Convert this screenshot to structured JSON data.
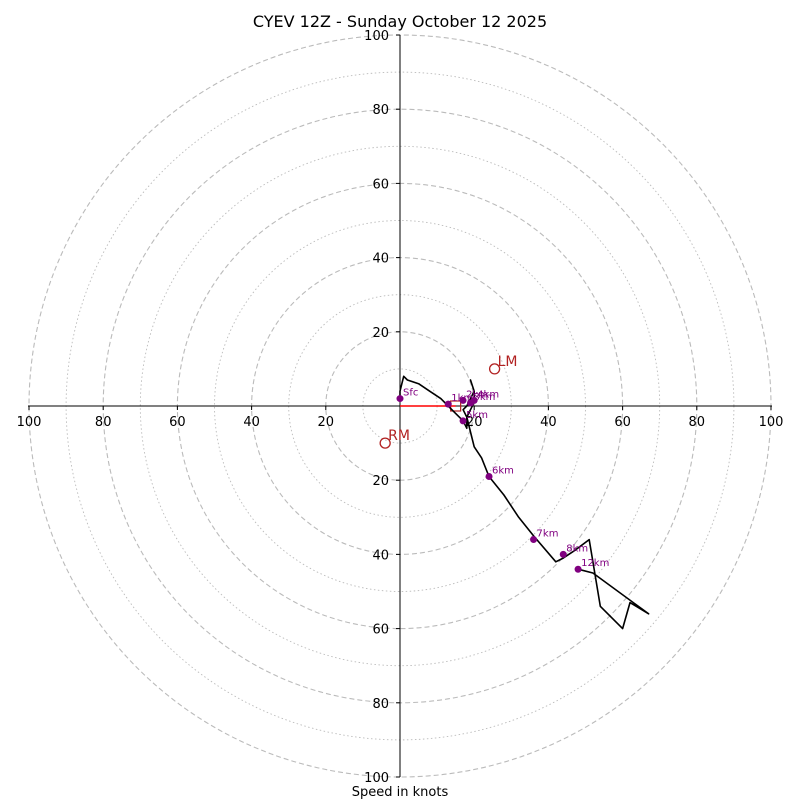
{
  "chart_data": {
    "type": "hodograph",
    "title": "CYEV 12Z - Sunday October 12 2025",
    "xlabel": "Speed in knots",
    "max_speed": 100,
    "ring_major_step": 20,
    "ring_minor_step": 10,
    "tick_values": [
      20,
      40,
      60,
      80,
      100
    ],
    "x_tick_labels": [
      "100",
      "80",
      "60",
      "40",
      "20",
      "20",
      "40",
      "60",
      "80",
      "100"
    ],
    "y_tick_labels_up": [
      "20",
      "40",
      "60",
      "80",
      "100"
    ],
    "y_tick_labels_down": [
      "20",
      "40",
      "60",
      "80",
      "100"
    ],
    "trace": [
      [
        0,
        2
      ],
      [
        0,
        4
      ],
      [
        1,
        8
      ],
      [
        2,
        7
      ],
      [
        5,
        6
      ],
      [
        8,
        4
      ],
      [
        11,
        2
      ],
      [
        13,
        0
      ],
      [
        15,
        -2
      ],
      [
        17,
        -4
      ],
      [
        18,
        -6
      ],
      [
        18,
        -3
      ],
      [
        17,
        -1
      ],
      [
        18,
        0
      ],
      [
        19,
        2
      ],
      [
        20,
        4
      ],
      [
        19,
        7
      ],
      [
        20,
        4
      ],
      [
        20,
        1
      ],
      [
        19,
        -1
      ],
      [
        18,
        -3
      ],
      [
        19,
        -7
      ],
      [
        20,
        -11
      ],
      [
        22,
        -14
      ],
      [
        24,
        -19
      ],
      [
        28,
        -24
      ],
      [
        32,
        -30
      ],
      [
        36,
        -35
      ],
      [
        42,
        -42
      ],
      [
        44,
        -41
      ],
      [
        47,
        -39
      ],
      [
        51,
        -36
      ],
      [
        52,
        -42
      ],
      [
        54,
        -54
      ],
      [
        60,
        -60
      ],
      [
        62,
        -53
      ],
      [
        67,
        -56
      ],
      [
        52,
        -45
      ],
      [
        48,
        -44
      ]
    ],
    "height_markers": [
      {
        "label": "Sfc",
        "u": 0,
        "v": 2
      },
      {
        "label": "1km",
        "u": 13,
        "v": 0.5
      },
      {
        "label": "2km",
        "u": 17,
        "v": 1.5
      },
      {
        "label": "3km",
        "u": 19,
        "v": 0.8
      },
      {
        "label": "4km",
        "u": 20,
        "v": 1.5
      },
      {
        "label": "5km",
        "u": 17,
        "v": -4
      },
      {
        "label": "6km",
        "u": 24,
        "v": -19
      },
      {
        "label": "7km",
        "u": 36,
        "v": -36
      },
      {
        "label": "8km",
        "u": 44,
        "v": -40
      },
      {
        "label": "12km",
        "u": 48,
        "v": -44
      }
    ],
    "storm_motion": [
      {
        "label": "LM",
        "u": 25.5,
        "v": 10
      },
      {
        "label": "RM",
        "u": -4,
        "v": -10
      }
    ],
    "mean_wind": {
      "u": 15,
      "v": 0
    },
    "colors": {
      "trace": "#000000",
      "marker": "#800080",
      "motion": "#b22222",
      "mean_line": "#ff0000",
      "grid": "#bbbbbb",
      "axis": "#000000"
    }
  }
}
